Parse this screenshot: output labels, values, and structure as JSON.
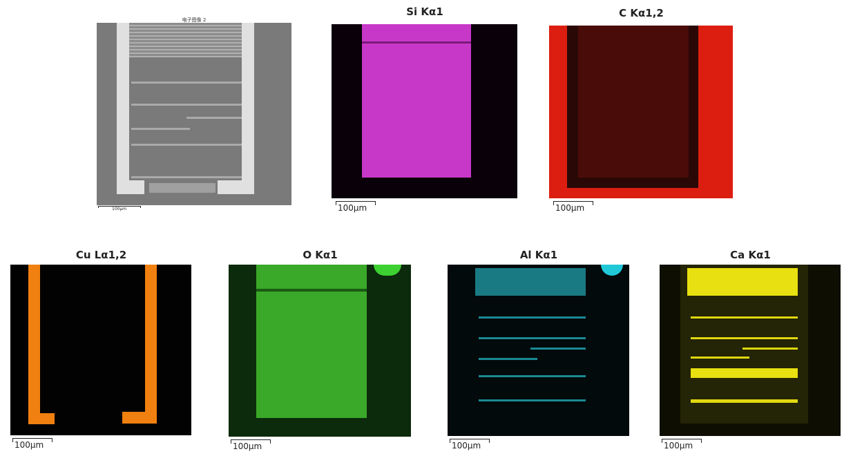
{
  "sem": {
    "title": "电子图像 2",
    "scale": "100µm"
  },
  "maps": [
    {
      "title": "Si Kα1",
      "scale": "100µm",
      "color": "#d63fd6"
    },
    {
      "title": "C Kα1,2",
      "scale": "100µm",
      "color": "#e02010"
    },
    {
      "title": "Cu Lα1,2",
      "scale": "100µm",
      "color": "#f08010"
    },
    {
      "title": "O Kα1",
      "scale": "100µm",
      "color": "#30b020"
    },
    {
      "title": "Al Kα1",
      "scale": "100µm",
      "color": "#20b8c8"
    },
    {
      "title": "Ca Kα1",
      "scale": "100µm",
      "color": "#e8e010"
    }
  ]
}
